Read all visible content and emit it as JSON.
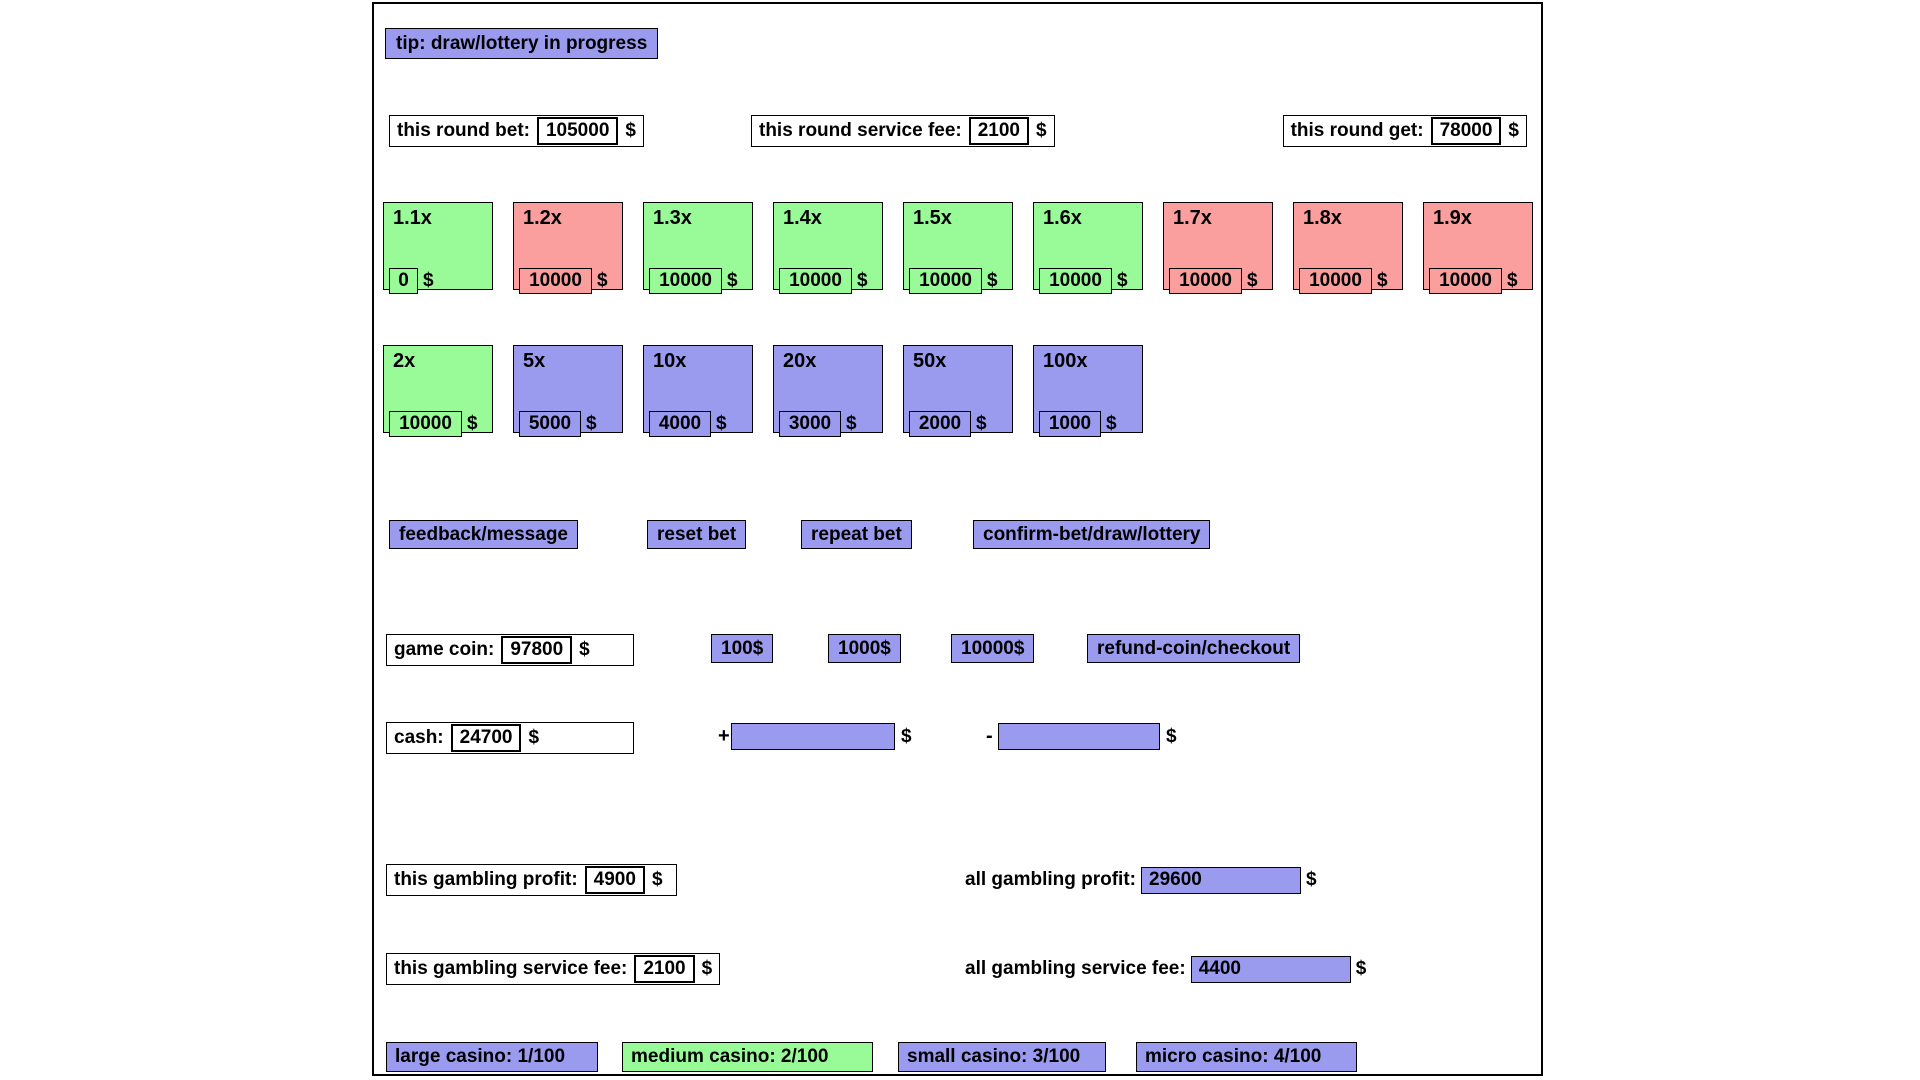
{
  "colors": {
    "green": "#98fb98",
    "red": "#fa9e9e",
    "purple": "#9a9aee"
  },
  "currency": "$",
  "tip": {
    "text": "tip: draw/lottery in progress"
  },
  "round_stats": [
    {
      "label": "this round bet:",
      "value": "105000"
    },
    {
      "label": "this round service fee:",
      "value": "2100"
    },
    {
      "label": "this round get:",
      "value": "78000"
    }
  ],
  "multipliers": {
    "items": [
      {
        "label": "1.1x",
        "value": "0",
        "color": "green"
      },
      {
        "label": "1.2x",
        "value": "10000",
        "color": "red"
      },
      {
        "label": "1.3x",
        "value": "10000",
        "color": "green"
      },
      {
        "label": "1.4x",
        "value": "10000",
        "color": "green"
      },
      {
        "label": "1.5x",
        "value": "10000",
        "color": "green"
      },
      {
        "label": "1.6x",
        "value": "10000",
        "color": "green"
      },
      {
        "label": "1.7x",
        "value": "10000",
        "color": "red"
      },
      {
        "label": "1.8x",
        "value": "10000",
        "color": "red"
      },
      {
        "label": "1.9x",
        "value": "10000",
        "color": "red"
      },
      {
        "label": "2x",
        "value": "10000",
        "color": "green"
      },
      {
        "label": "5x",
        "value": "5000",
        "color": "purple"
      },
      {
        "label": "10x",
        "value": "4000",
        "color": "purple"
      },
      {
        "label": "20x",
        "value": "3000",
        "color": "purple"
      },
      {
        "label": "50x",
        "value": "2000",
        "color": "purple"
      },
      {
        "label": "100x",
        "value": "1000",
        "color": "purple"
      }
    ]
  },
  "actions": {
    "feedback": "feedback/message",
    "reset": "reset bet",
    "repeat": "repeat bet",
    "confirm": "confirm-bet/draw/lottery"
  },
  "coin": {
    "label": "game coin:",
    "value": "97800",
    "add_buttons": [
      "100$",
      "1000$",
      "10000$"
    ],
    "refund": "refund-coin/checkout"
  },
  "cash": {
    "label": "cash:",
    "value": "24700",
    "plus": "+",
    "minus": "-",
    "plus_value": "",
    "minus_value": ""
  },
  "gambling": {
    "this_profit_label": "this gambling profit:",
    "this_profit_value": "4900",
    "all_profit_label": "all gambling profit:",
    "all_profit_value": "29600",
    "this_fee_label": "this gambling service fee:",
    "this_fee_value": "2100",
    "all_fee_label": "all gambling service fee:",
    "all_fee_value": "4400"
  },
  "casinos": [
    {
      "label": "large casino: 1/100",
      "color": "purple"
    },
    {
      "label": "medium casino: 2/100",
      "color": "green"
    },
    {
      "label": "small casino: 3/100",
      "color": "purple"
    },
    {
      "label": "micro casino: 4/100",
      "color": "purple"
    }
  ]
}
